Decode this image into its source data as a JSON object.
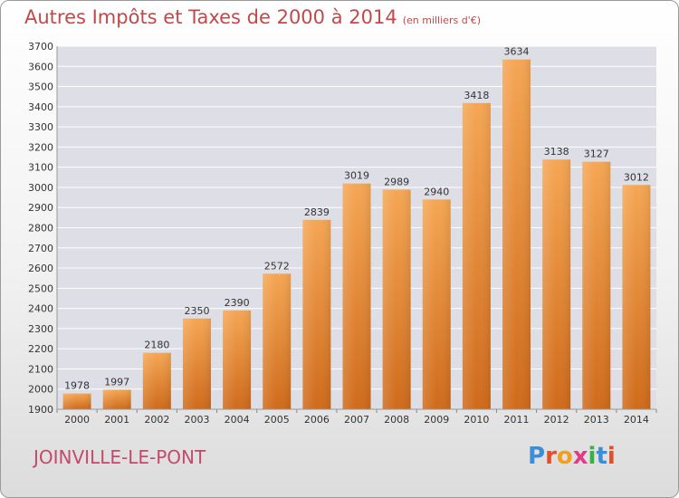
{
  "header": {
    "title": "Autres Impôts et Taxes de 2000 à 2014",
    "subtitle": "(en milliers d'€)"
  },
  "footer": {
    "city": "JOINVILLE-LE-PONT",
    "logo_letters": [
      "P",
      "r",
      "o",
      "x",
      "i",
      "t",
      "i"
    ],
    "logo_colors": [
      "#3a8fd8",
      "#e0502a",
      "#f0a020",
      "#e03a8a",
      "#3ab04a",
      "#3a8fd8",
      "#e0502a"
    ]
  },
  "chart_data": {
    "type": "bar",
    "title": "Autres Impôts et Taxes de 2000 à 2014",
    "ylabel": "en milliers d'€",
    "xlabel": "",
    "categories": [
      "2000",
      "2001",
      "2002",
      "2003",
      "2004",
      "2005",
      "2006",
      "2007",
      "2008",
      "2009",
      "2010",
      "2011",
      "2012",
      "2013",
      "2014"
    ],
    "values": [
      1978,
      1997,
      2180,
      2350,
      2390,
      2572,
      2839,
      3019,
      2989,
      2940,
      3418,
      3634,
      3138,
      3127,
      3012
    ],
    "ylim": [
      1900,
      3700
    ],
    "yticks": [
      1900,
      2000,
      2100,
      2200,
      2300,
      2400,
      2500,
      2600,
      2700,
      2800,
      2900,
      3000,
      3100,
      3200,
      3300,
      3400,
      3500,
      3600,
      3700
    ],
    "grid": true,
    "bar_color_top": "#f5a653",
    "bar_color_bottom": "#cf6a1a"
  }
}
